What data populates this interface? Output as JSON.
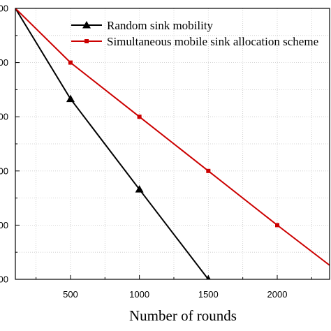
{
  "chart_data": {
    "type": "line",
    "xlabel": "Number of rounds",
    "x_ticks": [
      500,
      1000,
      1500,
      2000
    ],
    "y_tick_labels": [
      "00",
      "00",
      "00",
      "00",
      "00",
      "00"
    ],
    "xlim": [
      100,
      2380
    ],
    "ylim": [
      0,
      5
    ],
    "grid": "dotted",
    "legend_position": "top",
    "series": [
      {
        "name": "Random sink mobility",
        "color": "#000000",
        "marker": "triangle",
        "x": [
          100,
          500,
          1000,
          1500
        ],
        "y": [
          5,
          3.33,
          1.66,
          0
        ]
      },
      {
        "name": "Simultaneous mobile sink allocation scheme",
        "color": "#cc0000",
        "marker": "square",
        "x": [
          100,
          500,
          1000,
          1500,
          2000,
          2380
        ],
        "y": [
          5,
          4.0,
          3.0,
          2.0,
          1.0,
          0.26
        ]
      }
    ]
  }
}
